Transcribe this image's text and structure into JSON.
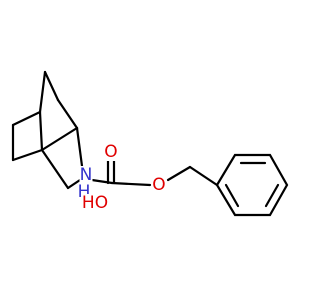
{
  "atoms": [
    {
      "label": "N",
      "color": "#3333cc"
    },
    {
      "label": "H",
      "color": "#3333cc"
    },
    {
      "label": "O",
      "color": "#e00000"
    },
    {
      "label": "O",
      "color": "#e00000"
    },
    {
      "label": "HO",
      "color": "#e00000"
    }
  ]
}
